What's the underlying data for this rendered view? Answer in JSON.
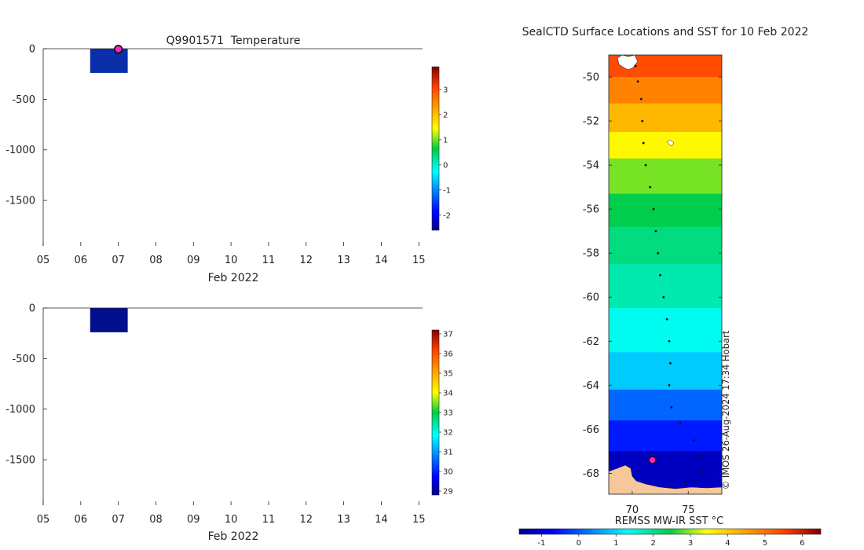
{
  "colors": {
    "profile_bar": "#0a2fa8",
    "profile_bar2": "#000f8c",
    "marker_fill": "#ff22cc",
    "marker_stroke": "#111111",
    "land": "#f6c79a",
    "track": "#111111"
  },
  "chart_data": [
    {
      "id": "temperature-profile",
      "type": "heatmap",
      "title": "Q9901571  Temperature",
      "xlabel": "Feb 2022",
      "ylabel": "",
      "x_ticks": [
        "05",
        "06",
        "07",
        "08",
        "09",
        "10",
        "11",
        "12",
        "13",
        "14",
        "15"
      ],
      "xlim": [
        5,
        15.1
      ],
      "y_ticks": [
        0,
        -500,
        -1000,
        -1500
      ],
      "y_tick_labels": [
        "0",
        "-500",
        "-1000",
        "-1500"
      ],
      "ylim": [
        -1950,
        0
      ],
      "bar": {
        "x_start": 6.25,
        "x_end": 7.25,
        "depth_top": 0,
        "depth_bottom": -240
      },
      "marker": {
        "x": 7.0,
        "depth": -5
      },
      "colorbar": {
        "min": -2.6,
        "max": 3.9,
        "ticks": [
          3,
          2,
          1,
          0,
          -1,
          -2
        ],
        "tick_labels": [
          "3",
          "2",
          "1",
          "0",
          "-1",
          "-2"
        ]
      }
    },
    {
      "id": "salinity-profile",
      "type": "heatmap",
      "title": "",
      "xlabel": "Feb 2022",
      "ylabel": "",
      "x_ticks": [
        "05",
        "06",
        "07",
        "08",
        "09",
        "10",
        "11",
        "12",
        "13",
        "14",
        "15"
      ],
      "xlim": [
        5,
        15.1
      ],
      "y_ticks": [
        0,
        -500,
        -1000,
        -1500
      ],
      "y_tick_labels": [
        "0",
        "-500",
        "-1000",
        "-1500"
      ],
      "ylim": [
        -1950,
        0
      ],
      "bar": {
        "x_start": 6.25,
        "x_end": 7.25,
        "depth_top": 0,
        "depth_bottom": -240
      },
      "colorbar": {
        "min": 28.8,
        "max": 37.2,
        "ticks": [
          37,
          36,
          35,
          34,
          33,
          32,
          31,
          30,
          29
        ],
        "tick_labels": [
          "37",
          "36",
          "35",
          "34",
          "33",
          "32",
          "31",
          "30",
          "29"
        ]
      }
    },
    {
      "id": "sst-map",
      "type": "heatmap",
      "title": "SealCTD Surface Locations and SST for 10 Feb 2022",
      "xlabel": "",
      "x_ticks": [
        70,
        75
      ],
      "x_tick_labels": [
        "70",
        "75"
      ],
      "xlim": [
        67.9,
        78.0
      ],
      "y_ticks": [
        -50,
        -52,
        -54,
        -56,
        -58,
        -60,
        -62,
        -64,
        -66,
        -68
      ],
      "y_tick_labels": [
        "-50",
        "-52",
        "-54",
        "-56",
        "-58",
        "-60",
        "-62",
        "-64",
        "-66",
        "-68"
      ],
      "ylim": [
        -68.95,
        -49.0
      ],
      "sst_bands": [
        {
          "lat_top": -49.0,
          "lat_bottom": -50.0,
          "value": 5.4
        },
        {
          "lat_top": -50.0,
          "lat_bottom": -51.2,
          "value": 4.8
        },
        {
          "lat_top": -51.2,
          "lat_bottom": -52.5,
          "value": 4.2
        },
        {
          "lat_top": -52.5,
          "lat_bottom": -53.7,
          "value": 3.5
        },
        {
          "lat_top": -53.7,
          "lat_bottom": -55.3,
          "value": 2.9
        },
        {
          "lat_top": -55.3,
          "lat_bottom": -56.8,
          "value": 2.4
        },
        {
          "lat_top": -56.8,
          "lat_bottom": -58.5,
          "value": 2.1
        },
        {
          "lat_top": -58.5,
          "lat_bottom": -60.5,
          "value": 1.8
        },
        {
          "lat_top": -60.5,
          "lat_bottom": -62.5,
          "value": 1.4
        },
        {
          "lat_top": -62.5,
          "lat_bottom": -64.2,
          "value": 0.9
        },
        {
          "lat_top": -64.2,
          "lat_bottom": -65.6,
          "value": 0.1
        },
        {
          "lat_top": -65.6,
          "lat_bottom": -67.0,
          "value": -0.5
        },
        {
          "lat_top": -67.0,
          "lat_bottom": -68.95,
          "value": -1.2
        }
      ],
      "track": [
        [
          70.3,
          -49.5
        ],
        [
          70.5,
          -50.2
        ],
        [
          70.8,
          -51.0
        ],
        [
          70.9,
          -52.0
        ],
        [
          71.0,
          -53.0
        ],
        [
          71.2,
          -54.0
        ],
        [
          71.6,
          -55.0
        ],
        [
          71.9,
          -56.0
        ],
        [
          72.1,
          -57.0
        ],
        [
          72.3,
          -58.0
        ],
        [
          72.5,
          -59.0
        ],
        [
          72.8,
          -60.0
        ],
        [
          73.1,
          -61.0
        ],
        [
          73.3,
          -62.0
        ],
        [
          73.4,
          -63.0
        ],
        [
          73.3,
          -64.0
        ],
        [
          73.5,
          -65.0
        ],
        [
          74.3,
          -65.7
        ],
        [
          75.5,
          -66.5
        ],
        [
          76.1,
          -67.2
        ],
        [
          76.3,
          -67.9
        ],
        [
          75.6,
          -68.3
        ],
        [
          74.8,
          -68.4
        ]
      ],
      "marker": {
        "lon": 71.8,
        "lat": -67.4
      },
      "credit": "© IMOS 26-Aug-2024 17:34 Hobart",
      "colorbar": {
        "label": "REMSS MW-IR SST °C",
        "min": -1.6,
        "max": 6.5,
        "ticks": [
          -1,
          0,
          1,
          2,
          3,
          4,
          5,
          6
        ],
        "tick_labels": [
          "-1",
          "0",
          "1",
          "2",
          "3",
          "4",
          "5",
          "6"
        ]
      }
    }
  ]
}
